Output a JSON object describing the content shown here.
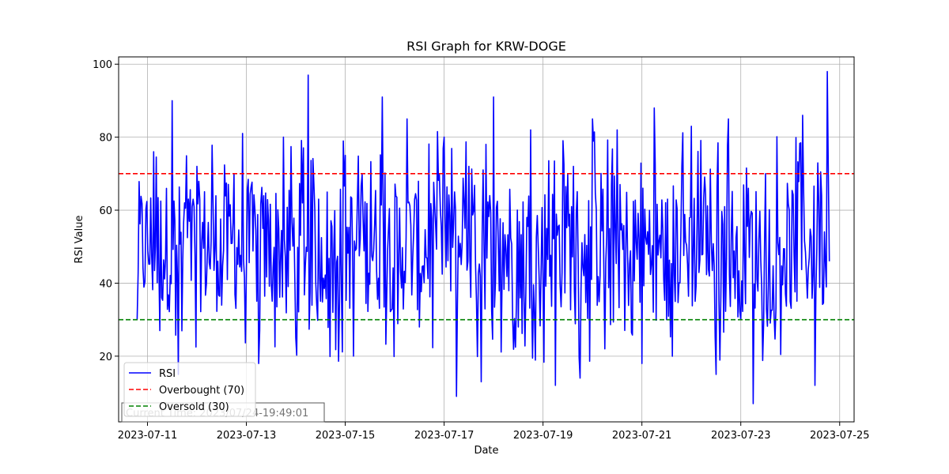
{
  "chart_data": {
    "type": "line",
    "title": "RSI Graph for KRW-DOGE",
    "xlabel": "Date",
    "ylabel": "RSI Value",
    "xlim": [
      "2023-07-10 10:00",
      "2023-07-25 07:00"
    ],
    "ylim": [
      2,
      102
    ],
    "x_ticks": [
      "2023-07-11",
      "2023-07-13",
      "2023-07-15",
      "2023-07-17",
      "2023-07-19",
      "2023-07-21",
      "2023-07-23",
      "2023-07-25"
    ],
    "y_ticks": [
      20,
      40,
      60,
      80,
      100
    ],
    "grid": true,
    "legend_position": "lower-left",
    "annotation": "Current Time: 2023/07/24-19:49:01",
    "series": [
      {
        "name": "RSI",
        "color": "#0000ff",
        "style": "solid",
        "x": [
          "2023-07-10 19:00",
          "2023-07-11 03:00",
          "2023-07-11 06:00",
          "2023-07-11 12:00",
          "2023-07-11 15:00",
          "2023-07-11 18:00",
          "2023-07-12 00:00",
          "2023-07-12 12:00",
          "2023-07-12 18:00",
          "2023-07-13 00:00",
          "2023-07-13 06:00",
          "2023-07-13 08:00",
          "2023-07-13 18:00",
          "2023-07-14 00:00",
          "2023-07-14 06:00",
          "2023-07-14 18:00",
          "2023-07-15 00:00",
          "2023-07-15 04:00",
          "2023-07-15 18:00",
          "2023-07-15 21:00",
          "2023-07-16 06:00",
          "2023-07-16 12:00",
          "2023-07-17 00:00",
          "2023-07-17 06:00",
          "2023-07-17 12:00",
          "2023-07-17 18:00",
          "2023-07-18 00:00",
          "2023-07-18 12:00",
          "2023-07-18 18:00",
          "2023-07-19 06:00",
          "2023-07-19 12:00",
          "2023-07-19 18:00",
          "2023-07-20 00:00",
          "2023-07-20 06:00",
          "2023-07-20 12:00",
          "2023-07-21 00:00",
          "2023-07-21 06:00",
          "2023-07-21 12:00",
          "2023-07-22 00:00",
          "2023-07-22 12:00",
          "2023-07-22 18:00",
          "2023-07-23 00:00",
          "2023-07-23 06:00",
          "2023-07-23 12:00",
          "2023-07-24 00:00",
          "2023-07-24 06:00",
          "2023-07-24 12:00",
          "2023-07-24 18:00",
          "2023-07-24 19:00"
        ],
        "y": [
          30,
          76,
          27,
          90,
          15,
          62,
          72,
          34,
          70,
          42,
          18,
          55,
          80,
          25,
          97,
          32,
          75,
          20,
          91,
          55,
          85,
          28,
          80,
          9,
          72,
          13,
          91,
          28,
          82,
          12,
          70,
          14,
          85,
          22,
          82,
          18,
          88,
          30,
          83,
          15,
          85,
          30,
          7,
          70,
          35,
          86,
          12,
          98,
          46
        ]
      },
      {
        "name": "Overbought (70)",
        "color": "#ff0000",
        "style": "dashed",
        "value": 70
      },
      {
        "name": "Oversold (30)",
        "color": "#008000",
        "style": "dashed",
        "value": 30
      }
    ]
  }
}
